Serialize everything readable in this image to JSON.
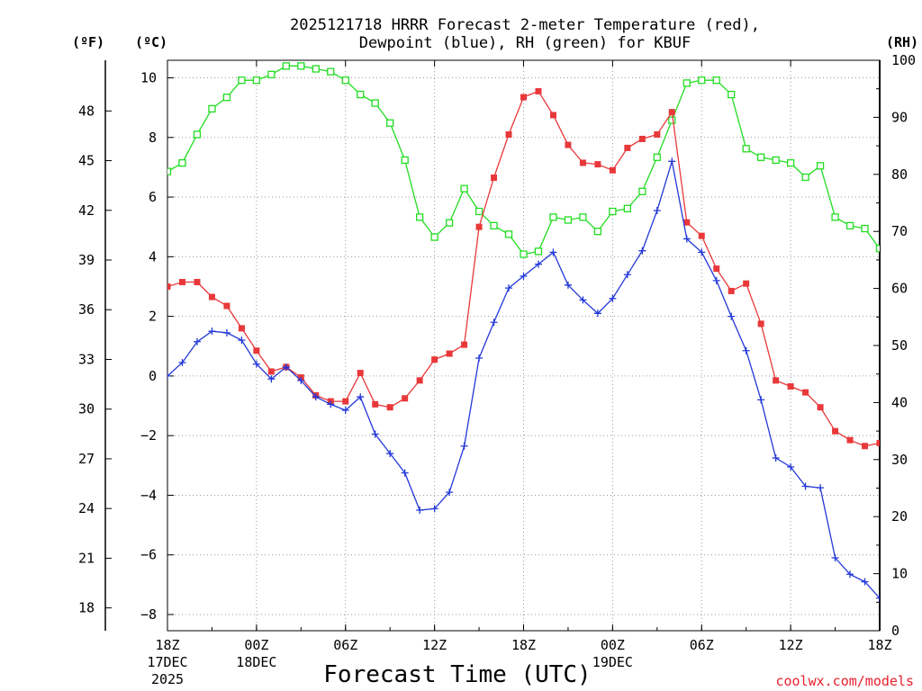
{
  "chart_data": {
    "type": "line",
    "title_line1": "2025121718 HRRR Forecast 2-meter Temperature (red),",
    "title_line2": "Dewpoint (blue), RH (green) for KBUF",
    "unit_f": "(ºF)",
    "unit_c": "(ºC)",
    "unit_rh": "(RH)",
    "xlabel": "Forecast Time (UTC)",
    "credit": "coolwx.com/models",
    "x_range": [
      0,
      48
    ],
    "ylim_c": [
      -8.5,
      10.5
    ],
    "ylim_rh": [
      0,
      100
    ],
    "left_ticks_c": [
      "10",
      "8",
      "6",
      "4",
      "2",
      "0",
      "−2",
      "−4",
      "−6",
      "−8"
    ],
    "left_tick_values_c": [
      10,
      8,
      6,
      4,
      2,
      0,
      -2,
      -4,
      -6,
      -8
    ],
    "far_left_ticks_f": [
      "48",
      "45",
      "42",
      "39",
      "36",
      "33",
      "30",
      "27",
      "24",
      "21",
      "18"
    ],
    "far_left_tick_values_f": [
      48,
      45,
      42,
      39,
      36,
      33,
      30,
      27,
      24,
      21,
      18
    ],
    "right_ticks_rh": [
      "100",
      "90",
      "80",
      "70",
      "60",
      "50",
      "40",
      "30",
      "20",
      "10",
      "0"
    ],
    "right_tick_values_rh": [
      100,
      90,
      80,
      70,
      60,
      50,
      40,
      30,
      20,
      10,
      0
    ],
    "x_ticks": [
      {
        "hour": 0,
        "line1": "18Z",
        "line2": "17DEC",
        "line3": "2025"
      },
      {
        "hour": 6,
        "line1": "00Z",
        "line2": "18DEC",
        "line3": ""
      },
      {
        "hour": 12,
        "line1": "06Z",
        "line2": "",
        "line3": ""
      },
      {
        "hour": 18,
        "line1": "12Z",
        "line2": "",
        "line3": ""
      },
      {
        "hour": 24,
        "line1": "18Z",
        "line2": "",
        "line3": ""
      },
      {
        "hour": 30,
        "line1": "00Z",
        "line2": "19DEC",
        "line3": ""
      },
      {
        "hour": 36,
        "line1": "06Z",
        "line2": "",
        "line3": ""
      },
      {
        "hour": 42,
        "line1": "12Z",
        "line2": "",
        "line3": ""
      },
      {
        "hour": 48,
        "line1": "18Z",
        "line2": "",
        "line3": ""
      }
    ],
    "series": [
      {
        "name": "Temperature",
        "unit": "C",
        "color": "#e8383a",
        "marker": "filled-square",
        "values": [
          3.0,
          3.15,
          3.15,
          2.65,
          2.35,
          1.6,
          0.85,
          0.15,
          0.3,
          -0.05,
          -0.65,
          -0.85,
          -0.85,
          0.1,
          -0.95,
          -1.05,
          -0.75,
          -0.15,
          0.55,
          0.75,
          1.05,
          5.0,
          6.65,
          8.1,
          9.35,
          9.55,
          8.75,
          7.75,
          7.15,
          7.1,
          6.9,
          7.65,
          7.95,
          8.1,
          8.85,
          5.15,
          4.7,
          3.6,
          2.85,
          3.1,
          1.75,
          -0.15,
          -0.35,
          -0.55,
          -1.05,
          -1.85,
          -2.15,
          -2.35,
          -2.25
        ]
      },
      {
        "name": "Dewpoint",
        "unit": "C",
        "color": "#2238d8",
        "marker": "plus",
        "values": [
          0.0,
          0.45,
          1.15,
          1.5,
          1.45,
          1.2,
          0.4,
          -0.1,
          0.3,
          -0.15,
          -0.7,
          -0.95,
          -1.15,
          -0.7,
          -1.95,
          -2.6,
          -3.25,
          -4.5,
          -4.45,
          -3.9,
          -2.35,
          0.6,
          1.8,
          2.95,
          3.35,
          3.75,
          4.15,
          3.05,
          2.55,
          2.1,
          2.6,
          3.4,
          4.2,
          5.55,
          7.2,
          4.6,
          4.15,
          3.2,
          2.0,
          0.85,
          -0.8,
          -2.75,
          -3.05,
          -3.7,
          -3.75,
          -6.1,
          -6.65,
          -6.9,
          -7.45
        ]
      },
      {
        "name": "RH",
        "unit": "%",
        "color": "#22dd22",
        "marker": "open-square",
        "values": [
          80.5,
          82.0,
          87.0,
          91.5,
          93.5,
          96.5,
          96.5,
          97.5,
          99.0,
          99.0,
          98.5,
          98.0,
          96.5,
          94.0,
          92.5,
          89.0,
          82.5,
          72.5,
          69.0,
          71.5,
          77.5,
          73.5,
          71.0,
          69.5,
          66.0,
          66.5,
          72.5,
          72.0,
          72.5,
          70.0,
          73.5,
          74.0,
          77.0,
          83.0,
          89.5,
          96.0,
          96.5,
          96.5,
          94.0,
          84.5,
          83.0,
          82.5,
          82.0,
          79.5,
          81.5,
          72.5,
          71.0,
          70.5,
          67.0
        ]
      }
    ]
  }
}
